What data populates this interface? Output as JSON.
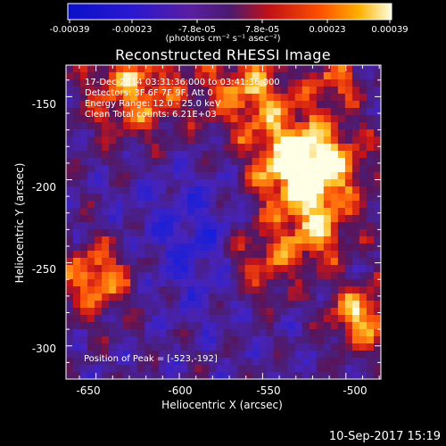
{
  "colorbar": {
    "ticks": [
      "-0.00039",
      "-0.00023",
      "-7.8e-05",
      "7.8e-05",
      "0.00023",
      "0.00039"
    ],
    "units": "(photons cm⁻² s⁻¹ asec⁻²)"
  },
  "title": "Reconstructed RHESSI Image",
  "info": {
    "time_range": "17-Dec-2014 03:31:36.000 to 03:41:36.000",
    "detectors": "Detectors: 3F 6F 7F 9F, Att 0",
    "energy": "Energy Range: 12.0 - 25.0 keV",
    "algorithm": "Clean    Total counts: 6.21E+03"
  },
  "peak": "Position of Peak = [-523,-192]",
  "axes": {
    "xlabel": "Heliocentric X (arcsec)",
    "ylabel": "Heliocentric Y (arcsec)",
    "xticks": [
      "-650",
      "-600",
      "-550",
      "-500"
    ],
    "yticks": [
      "-150",
      "-200",
      "-250",
      "-300"
    ],
    "xrange": [
      -668,
      -479
    ],
    "yrange": [
      -320,
      -131
    ]
  },
  "timestamp": "10-Sep-2017 15:19",
  "colors": {
    "negative": "#0000ff",
    "zero": "#4b1f7a",
    "mid": "#c81010",
    "positive": "#ffffff"
  }
}
